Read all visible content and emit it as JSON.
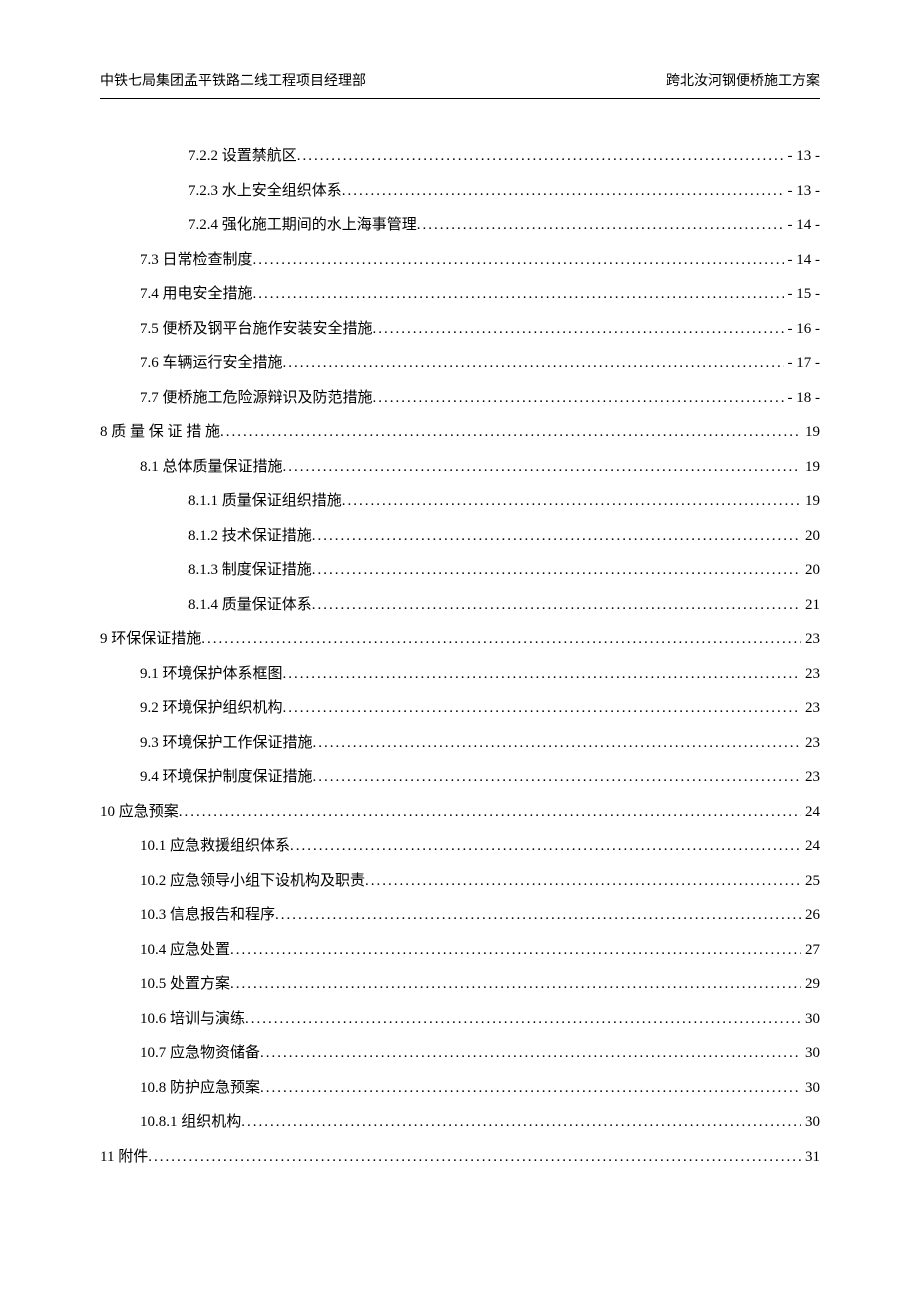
{
  "header": {
    "left": "中铁七局集团孟平铁路二线工程项目经理部",
    "right": "跨北汝河钢便桥施工方案"
  },
  "toc": [
    {
      "indent": 2,
      "label": "7.2.2 设置禁航区",
      "page": "- 13 -"
    },
    {
      "indent": 2,
      "label": "7.2.3 水上安全组织体系",
      "page": "- 13 -"
    },
    {
      "indent": 2,
      "label": "7.2.4 强化施工期间的水上海事管理",
      "page": "- 14 -"
    },
    {
      "indent": 1,
      "label": "7.3 日常检查制度",
      "page": "- 14 -"
    },
    {
      "indent": 1,
      "label": "7.4 用电安全措施",
      "page": "- 15 -"
    },
    {
      "indent": 1,
      "label": "7.5 便桥及钢平台施作安装安全措施",
      "page": "- 16 -"
    },
    {
      "indent": 1,
      "label": "7.6 车辆运行安全措施",
      "page": "- 17 -"
    },
    {
      "indent": 1,
      "label": "7.7 便桥施工危险源辩识及防范措施",
      "page": "- 18 -"
    },
    {
      "indent": 0,
      "label": "8 质 量 保 证 措 施",
      "page": "19"
    },
    {
      "indent": 1,
      "label": "8.1 总体质量保证措施",
      "page": "19"
    },
    {
      "indent": 2,
      "label": "8.1.1 质量保证组织措施",
      "page": "19"
    },
    {
      "indent": 2,
      "label": "8.1.2 技术保证措施",
      "page": "20"
    },
    {
      "indent": 2,
      "label": "8.1.3 制度保证措施",
      "page": "20"
    },
    {
      "indent": 2,
      "label": "8.1.4 质量保证体系",
      "page": "21"
    },
    {
      "indent": 0,
      "label": "9 环保保证措施",
      "page": "23"
    },
    {
      "indent": 1,
      "label": "9.1 环境保护体系框图",
      "page": "23"
    },
    {
      "indent": 1,
      "label": "9.2 环境保护组织机构",
      "page": "23"
    },
    {
      "indent": 1,
      "label": "9.3 环境保护工作保证措施",
      "page": "23"
    },
    {
      "indent": 1,
      "label": "9.4 环境保护制度保证措施",
      "page": "23"
    },
    {
      "indent": 0,
      "label": "10 应急预案",
      "page": "24"
    },
    {
      "indent": 1,
      "label": "10.1 应急救援组织体系",
      "page": "24"
    },
    {
      "indent": 1,
      "label": "10.2 应急领导小组下设机构及职责",
      "page": "25"
    },
    {
      "indent": 1,
      "label": "10.3 信息报告和程序",
      "page": "26"
    },
    {
      "indent": 1,
      "label": "10.4 应急处置",
      "page": "27"
    },
    {
      "indent": 1,
      "label": "10.5 处置方案",
      "page": "29"
    },
    {
      "indent": 1,
      "label": "10.6 培训与演练",
      "page": "30"
    },
    {
      "indent": 1,
      "label": "10.7 应急物资储备",
      "page": "30"
    },
    {
      "indent": 1,
      "label": "10.8 防护应急预案",
      "page": "30"
    },
    {
      "indent": 1,
      "label": "10.8.1 组织机构",
      "page": "30"
    },
    {
      "indent": 0,
      "label": "11 附件",
      "page": "31"
    }
  ]
}
